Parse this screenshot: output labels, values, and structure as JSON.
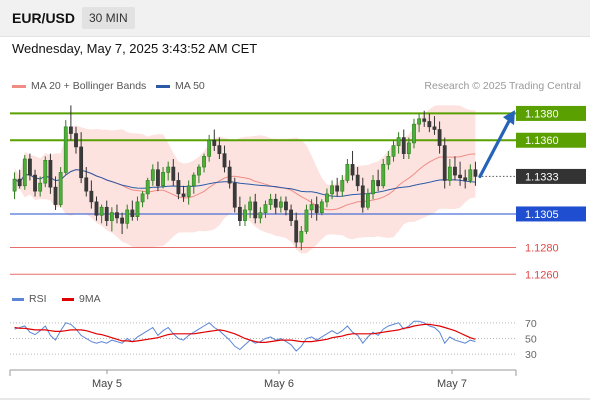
{
  "header": {
    "symbol": "EUR/USD",
    "timeframe": "30 MIN"
  },
  "datetime": "Wednesday, May 7, 2025 3:43:52 AM CET",
  "legend": {
    "items": [
      {
        "label": "MA 20 + Bollinger Bands",
        "color": "#f08c84"
      },
      {
        "label": "MA 50",
        "color": "#2d5aa6"
      }
    ],
    "credit": "Research © 2025 Trading Central"
  },
  "sub_legend": {
    "items": [
      {
        "label": "RSI",
        "color": "#5b86d6"
      },
      {
        "label": "9MA",
        "color": "#e00000"
      }
    ]
  },
  "colors": {
    "green": "#5aa000",
    "blue": "#1f4fd0",
    "red": "#e04848",
    "current": "#333333",
    "arrow": "#2563b8"
  },
  "chart_data": [
    {
      "type": "candlestick",
      "x_ticks": [
        "May 5",
        "May 6",
        "May 7"
      ],
      "ylim": [
        1.1252,
        1.1393
      ],
      "levels": [
        {
          "value": 1.138,
          "label": "1.1380",
          "color": "green"
        },
        {
          "value": 1.136,
          "label": "1.1360",
          "color": "green"
        },
        {
          "value": 1.1333,
          "label": "1.1333",
          "color": "current"
        },
        {
          "value": 1.1305,
          "label": "1.1305",
          "color": "blue"
        },
        {
          "value": 1.128,
          "label": "1.1280",
          "color": "red"
        },
        {
          "value": 1.126,
          "label": "1.1260",
          "color": "red"
        }
      ],
      "forecast_arrow": {
        "from": 1.1333,
        "to": 1.1378
      },
      "series_ohlc": [
        [
          1.1322,
          1.1336,
          1.1316,
          1.1331
        ],
        [
          1.1331,
          1.1338,
          1.1324,
          1.1326
        ],
        [
          1.1326,
          1.1349,
          1.1323,
          1.1346
        ],
        [
          1.1346,
          1.135,
          1.133,
          1.1334
        ],
        [
          1.1334,
          1.1338,
          1.1318,
          1.1322
        ],
        [
          1.1322,
          1.1333,
          1.1318,
          1.1328
        ],
        [
          1.1328,
          1.1348,
          1.1325,
          1.1345
        ],
        [
          1.1345,
          1.135,
          1.132,
          1.1325
        ],
        [
          1.1325,
          1.1333,
          1.1308,
          1.1312
        ],
        [
          1.1312,
          1.134,
          1.131,
          1.1336
        ],
        [
          1.1336,
          1.1375,
          1.1334,
          1.137
        ],
        [
          1.137,
          1.1386,
          1.136,
          1.1365
        ],
        [
          1.1365,
          1.137,
          1.135,
          1.1355
        ],
        [
          1.1355,
          1.1366,
          1.1328,
          1.1332
        ],
        [
          1.1332,
          1.134,
          1.1318,
          1.1322
        ],
        [
          1.1322,
          1.133,
          1.1309,
          1.1314
        ],
        [
          1.1314,
          1.1318,
          1.13,
          1.1304
        ],
        [
          1.1304,
          1.1312,
          1.1298,
          1.131
        ],
        [
          1.131,
          1.1315,
          1.1296,
          1.13
        ],
        [
          1.13,
          1.131,
          1.1292,
          1.1306
        ],
        [
          1.1306,
          1.1312,
          1.1298,
          1.1302
        ],
        [
          1.1302,
          1.1306,
          1.129,
          1.1298
        ],
        [
          1.1298,
          1.1312,
          1.1294,
          1.1308
        ],
        [
          1.1308,
          1.1315,
          1.13,
          1.1303
        ],
        [
          1.1303,
          1.1318,
          1.13,
          1.1314
        ],
        [
          1.1314,
          1.1322,
          1.131,
          1.132
        ],
        [
          1.132,
          1.1332,
          1.1316,
          1.133
        ],
        [
          1.133,
          1.1342,
          1.1326,
          1.1338
        ],
        [
          1.1338,
          1.1344,
          1.1322,
          1.1326
        ],
        [
          1.1326,
          1.134,
          1.1324,
          1.1336
        ],
        [
          1.1336,
          1.1344,
          1.133,
          1.134
        ],
        [
          1.134,
          1.1346,
          1.1326,
          1.133
        ],
        [
          1.133,
          1.1336,
          1.1316,
          1.132
        ],
        [
          1.132,
          1.1326,
          1.1314,
          1.1318
        ],
        [
          1.1318,
          1.133,
          1.1312,
          1.1326
        ],
        [
          1.1326,
          1.1336,
          1.132,
          1.1334
        ],
        [
          1.1334,
          1.1342,
          1.1328,
          1.134
        ],
        [
          1.134,
          1.135,
          1.1336,
          1.1348
        ],
        [
          1.1348,
          1.1364,
          1.1344,
          1.136
        ],
        [
          1.136,
          1.1368,
          1.1352,
          1.1356
        ],
        [
          1.1356,
          1.1362,
          1.1346,
          1.135
        ],
        [
          1.135,
          1.1356,
          1.1336,
          1.134
        ],
        [
          1.134,
          1.1345,
          1.1324,
          1.1328
        ],
        [
          1.1328,
          1.1332,
          1.1306,
          1.131
        ],
        [
          1.131,
          1.1318,
          1.1296,
          1.13
        ],
        [
          1.13,
          1.1312,
          1.1296,
          1.1308
        ],
        [
          1.1308,
          1.1318,
          1.1302,
          1.1314
        ],
        [
          1.1314,
          1.132,
          1.1298,
          1.1302
        ],
        [
          1.1302,
          1.131,
          1.1298,
          1.1306
        ],
        [
          1.1306,
          1.1315,
          1.1302,
          1.1312
        ],
        [
          1.1312,
          1.132,
          1.1308,
          1.1316
        ],
        [
          1.1316,
          1.132,
          1.1305,
          1.131
        ],
        [
          1.131,
          1.1318,
          1.1306,
          1.1314
        ],
        [
          1.1314,
          1.1318,
          1.1304,
          1.1308
        ],
        [
          1.1308,
          1.1312,
          1.1296,
          1.13
        ],
        [
          1.13,
          1.1306,
          1.128,
          1.1284
        ],
        [
          1.1284,
          1.1296,
          1.1278,
          1.1292
        ],
        [
          1.1292,
          1.1312,
          1.129,
          1.1308
        ],
        [
          1.1308,
          1.1316,
          1.1302,
          1.1312
        ],
        [
          1.1312,
          1.1318,
          1.13,
          1.1306
        ],
        [
          1.1306,
          1.1316,
          1.1304,
          1.1314
        ],
        [
          1.1314,
          1.1324,
          1.131,
          1.132
        ],
        [
          1.132,
          1.133,
          1.1316,
          1.1326
        ],
        [
          1.1326,
          1.1332,
          1.1318,
          1.1322
        ],
        [
          1.1322,
          1.1334,
          1.1318,
          1.133
        ],
        [
          1.133,
          1.1346,
          1.1328,
          1.1342
        ],
        [
          1.1342,
          1.1352,
          1.133,
          1.1334
        ],
        [
          1.1334,
          1.134,
          1.1322,
          1.1326
        ],
        [
          1.1326,
          1.1332,
          1.1306,
          1.131
        ],
        [
          1.131,
          1.1324,
          1.1308,
          1.132
        ],
        [
          1.132,
          1.1334,
          1.1316,
          1.133
        ],
        [
          1.133,
          1.1338,
          1.1322,
          1.1326
        ],
        [
          1.1326,
          1.1346,
          1.1324,
          1.1342
        ],
        [
          1.1342,
          1.1352,
          1.1338,
          1.1348
        ],
        [
          1.1348,
          1.136,
          1.1344,
          1.1356
        ],
        [
          1.1356,
          1.1366,
          1.135,
          1.1362
        ],
        [
          1.1362,
          1.1368,
          1.1346,
          1.135
        ],
        [
          1.135,
          1.1362,
          1.1346,
          1.1358
        ],
        [
          1.1358,
          1.1376,
          1.1354,
          1.1372
        ],
        [
          1.1372,
          1.138,
          1.1366,
          1.1376
        ],
        [
          1.1376,
          1.1382,
          1.137,
          1.1374
        ],
        [
          1.1374,
          1.138,
          1.1366,
          1.137
        ],
        [
          1.137,
          1.1378,
          1.1364,
          1.1368
        ],
        [
          1.1368,
          1.1374,
          1.135,
          1.1356
        ],
        [
          1.1356,
          1.1362,
          1.1324,
          1.133
        ],
        [
          1.133,
          1.1346,
          1.1326,
          1.134
        ],
        [
          1.134,
          1.1348,
          1.133,
          1.1334
        ],
        [
          1.1334,
          1.1344,
          1.1326,
          1.1332
        ],
        [
          1.1332,
          1.1338,
          1.1324,
          1.133
        ],
        [
          1.133,
          1.1342,
          1.1328,
          1.1338
        ],
        [
          1.1338,
          1.1344,
          1.1326,
          1.1333
        ]
      ]
    },
    {
      "type": "line",
      "name": "RSI",
      "yticks": [
        70,
        50,
        30
      ],
      "ylim": [
        20,
        80
      ],
      "series": [
        {
          "name": "RSI",
          "color": "#5b86d6",
          "values": [
            62,
            64,
            66,
            58,
            55,
            60,
            66,
            54,
            48,
            60,
            70,
            68,
            62,
            54,
            50,
            46,
            44,
            46,
            44,
            48,
            46,
            44,
            50,
            46,
            52,
            56,
            60,
            64,
            54,
            60,
            64,
            56,
            50,
            48,
            54,
            58,
            62,
            66,
            70,
            64,
            60,
            54,
            48,
            40,
            36,
            42,
            48,
            44,
            46,
            50,
            52,
            48,
            50,
            46,
            42,
            34,
            40,
            50,
            52,
            48,
            52,
            56,
            60,
            56,
            60,
            66,
            58,
            54,
            44,
            52,
            58,
            54,
            62,
            66,
            68,
            70,
            62,
            66,
            72,
            72,
            70,
            66,
            64,
            58,
            44,
            52,
            48,
            46,
            44,
            48,
            46
          ]
        },
        {
          "name": "9MA",
          "color": "#e00000",
          "values": [
            64,
            63,
            63,
            62,
            61,
            61,
            61,
            60,
            59,
            59,
            60,
            61,
            61,
            61,
            60,
            58,
            56,
            55,
            53,
            51,
            49,
            47,
            47,
            46,
            47,
            48,
            49,
            50,
            51,
            53,
            55,
            56,
            56,
            56,
            56,
            56,
            57,
            58,
            59,
            60,
            61,
            60,
            58,
            56,
            53,
            50,
            48,
            46,
            45,
            45,
            46,
            47,
            48,
            48,
            48,
            47,
            46,
            46,
            46,
            47,
            48,
            49,
            51,
            52,
            53,
            55,
            56,
            56,
            56,
            56,
            56,
            57,
            58,
            59,
            60,
            61,
            63,
            64,
            66,
            67,
            68,
            68,
            67,
            66,
            64,
            62,
            60,
            57,
            54,
            51,
            49
          ]
        }
      ]
    }
  ]
}
